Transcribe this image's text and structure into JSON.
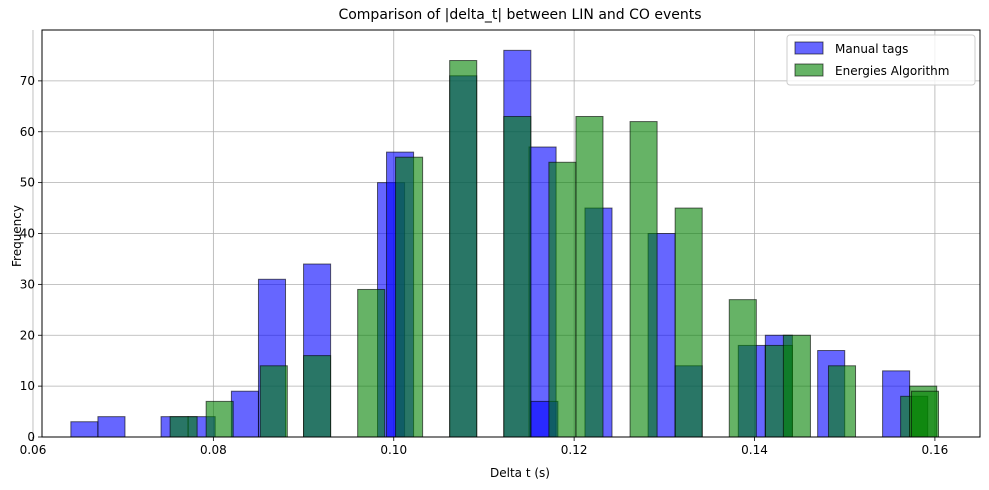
{
  "chart_data": {
    "type": "bar",
    "title": "Comparison of |delta_t| between LIN and CO events",
    "xlabel": "Delta t (s)",
    "ylabel": "Frequency",
    "xlim": [
      0.061,
      0.165
    ],
    "ylim": [
      0,
      80
    ],
    "xticks": [
      0.06,
      0.08,
      0.1,
      0.12,
      0.14,
      0.16
    ],
    "xtick_labels": [
      "0.06",
      "0.08",
      "0.10",
      "0.12",
      "0.14",
      "0.16"
    ],
    "yticks": [
      0,
      10,
      20,
      30,
      40,
      50,
      60,
      70
    ],
    "ytick_labels": [
      "0",
      "10",
      "20",
      "30",
      "40",
      "50",
      "60",
      "70"
    ],
    "grid": true,
    "legend_position": "upper right",
    "series": [
      {
        "name": "Manual tags",
        "color": "#0000ff",
        "alpha": 0.6,
        "bars": [
          {
            "x0": 0.0642,
            "x1": 0.0672,
            "y": 3
          },
          {
            "x0": 0.0672,
            "x1": 0.0702,
            "y": 4
          },
          {
            "x0": 0.0742,
            "x1": 0.0772,
            "y": 4
          },
          {
            "x0": 0.0772,
            "x1": 0.0802,
            "y": 4
          },
          {
            "x0": 0.082,
            "x1": 0.085,
            "y": 9
          },
          {
            "x0": 0.085,
            "x1": 0.088,
            "y": 31
          },
          {
            "x0": 0.09,
            "x1": 0.093,
            "y": 34
          },
          {
            "x0": 0.0982,
            "x1": 0.1012,
            "y": 50
          },
          {
            "x0": 0.0992,
            "x1": 0.1022,
            "y": 56
          },
          {
            "x0": 0.1062,
            "x1": 0.1092,
            "y": 71
          },
          {
            "x0": 0.1122,
            "x1": 0.1152,
            "y": 76
          },
          {
            "x0": 0.115,
            "x1": 0.118,
            "y": 57
          },
          {
            "x0": 0.1152,
            "x1": 0.1182,
            "y": 7
          },
          {
            "x0": 0.1212,
            "x1": 0.1242,
            "y": 45
          },
          {
            "x0": 0.1282,
            "x1": 0.1312,
            "y": 40
          },
          {
            "x0": 0.1312,
            "x1": 0.1342,
            "y": 14
          },
          {
            "x0": 0.1382,
            "x1": 0.1412,
            "y": 18
          },
          {
            "x0": 0.1412,
            "x1": 0.1442,
            "y": 20
          },
          {
            "x0": 0.147,
            "x1": 0.15,
            "y": 17
          },
          {
            "x0": 0.1542,
            "x1": 0.1572,
            "y": 13
          }
        ]
      },
      {
        "name": "Energies Algorithm",
        "color": "#008000",
        "alpha": 0.6,
        "bars": [
          {
            "x0": 0.0752,
            "x1": 0.0782,
            "y": 4
          },
          {
            "x0": 0.0792,
            "x1": 0.0822,
            "y": 7
          },
          {
            "x0": 0.0852,
            "x1": 0.0882,
            "y": 14
          },
          {
            "x0": 0.09,
            "x1": 0.093,
            "y": 16
          },
          {
            "x0": 0.096,
            "x1": 0.099,
            "y": 29
          },
          {
            "x0": 0.1002,
            "x1": 0.1032,
            "y": 55
          },
          {
            "x0": 0.1062,
            "x1": 0.1092,
            "y": 74
          },
          {
            "x0": 0.1122,
            "x1": 0.1152,
            "y": 63
          },
          {
            "x0": 0.1172,
            "x1": 0.1202,
            "y": 54
          },
          {
            "x0": 0.1202,
            "x1": 0.1232,
            "y": 63
          },
          {
            "x0": 0.1262,
            "x1": 0.1292,
            "y": 62
          },
          {
            "x0": 0.1312,
            "x1": 0.1342,
            "y": 45
          },
          {
            "x0": 0.1372,
            "x1": 0.1402,
            "y": 27
          },
          {
            "x0": 0.1412,
            "x1": 0.1442,
            "y": 18
          },
          {
            "x0": 0.1432,
            "x1": 0.1462,
            "y": 20
          },
          {
            "x0": 0.1482,
            "x1": 0.1512,
            "y": 14
          },
          {
            "x0": 0.1562,
            "x1": 0.1592,
            "y": 8
          },
          {
            "x0": 0.1572,
            "x1": 0.1602,
            "y": 10
          },
          {
            "x0": 0.1574,
            "x1": 0.1604,
            "y": 9
          }
        ]
      }
    ]
  }
}
